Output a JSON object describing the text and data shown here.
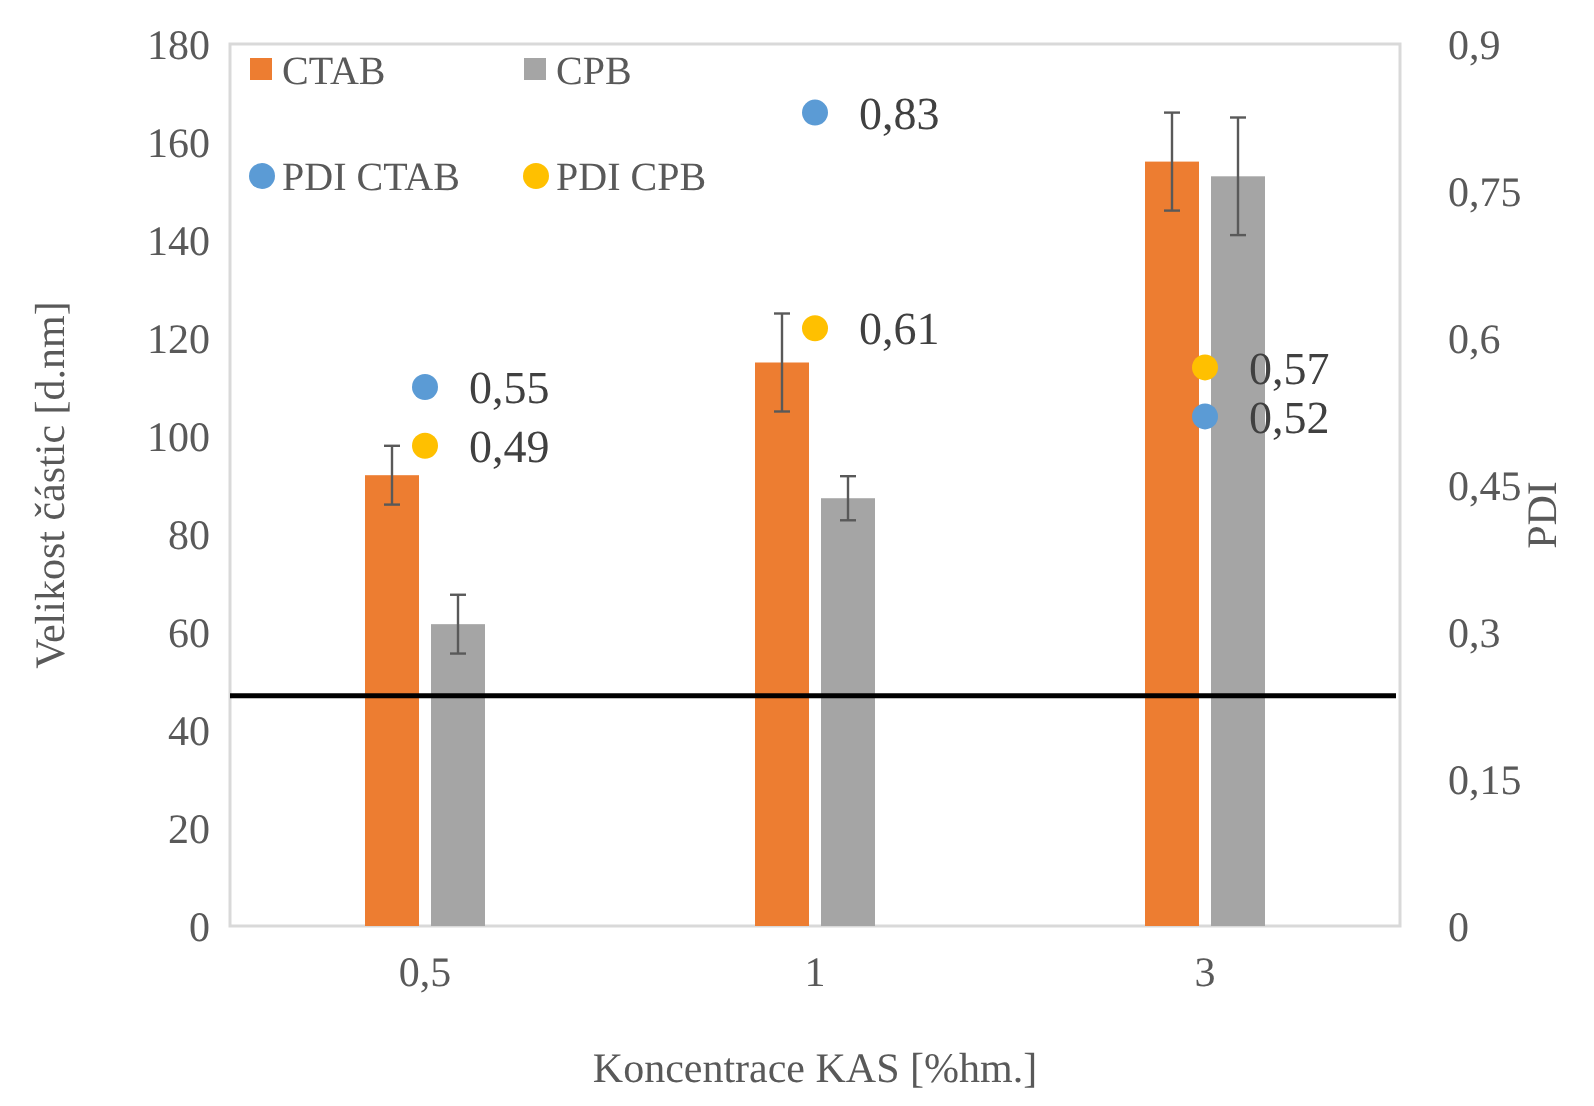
{
  "chart_data": {
    "type": "bar",
    "xlabel": "Koncentrace KAS [%hm.]",
    "ylabel": "Velikost částic [d.nm]",
    "y2label": "PDI",
    "categories": [
      "0,5",
      "1",
      "3"
    ],
    "series": [
      {
        "name": "CTAB",
        "color": "#ed7d31",
        "values": [
          92,
          115,
          156
        ],
        "errors": [
          6,
          10,
          10
        ]
      },
      {
        "name": "CPB",
        "color": "#a5a5a5",
        "values": [
          61.6,
          87.3,
          153
        ],
        "errors": [
          6,
          4.5,
          12
        ]
      },
      {
        "name": "PDI CTAB",
        "type": "scatter",
        "axis": "y2",
        "color": "#5b9bd5",
        "values": [
          0.55,
          0.83,
          0.52
        ],
        "value_labels": [
          "0,55",
          "0,83",
          "0,52"
        ]
      },
      {
        "name": "PDI CPB",
        "type": "scatter",
        "axis": "y2",
        "color": "#ffc000",
        "values": [
          0.49,
          0.61,
          0.57
        ],
        "value_labels": [
          "0,49",
          "0,61",
          "0,57"
        ]
      }
    ],
    "ylim": [
      0,
      180
    ],
    "yticks": [
      0,
      20,
      40,
      60,
      80,
      100,
      120,
      140,
      160,
      180
    ],
    "y2lim": [
      0,
      0.9
    ],
    "y2ticks": [
      0,
      {
        "value": 0.15,
        "label": "0,15"
      },
      {
        "value": 0.3,
        "label": "0,3"
      },
      {
        "value": 0.45,
        "label": "0,45"
      },
      {
        "value": 0.6,
        "label": "0,6"
      },
      {
        "value": 0.75,
        "label": "0,75"
      },
      {
        "value": 0.9,
        "label": "0,9"
      }
    ],
    "ref_lines": [
      {
        "axis": "y",
        "value": 47,
        "color": "#000000"
      }
    ],
    "grid": false,
    "legend": "top left",
    "marker": "circle"
  }
}
